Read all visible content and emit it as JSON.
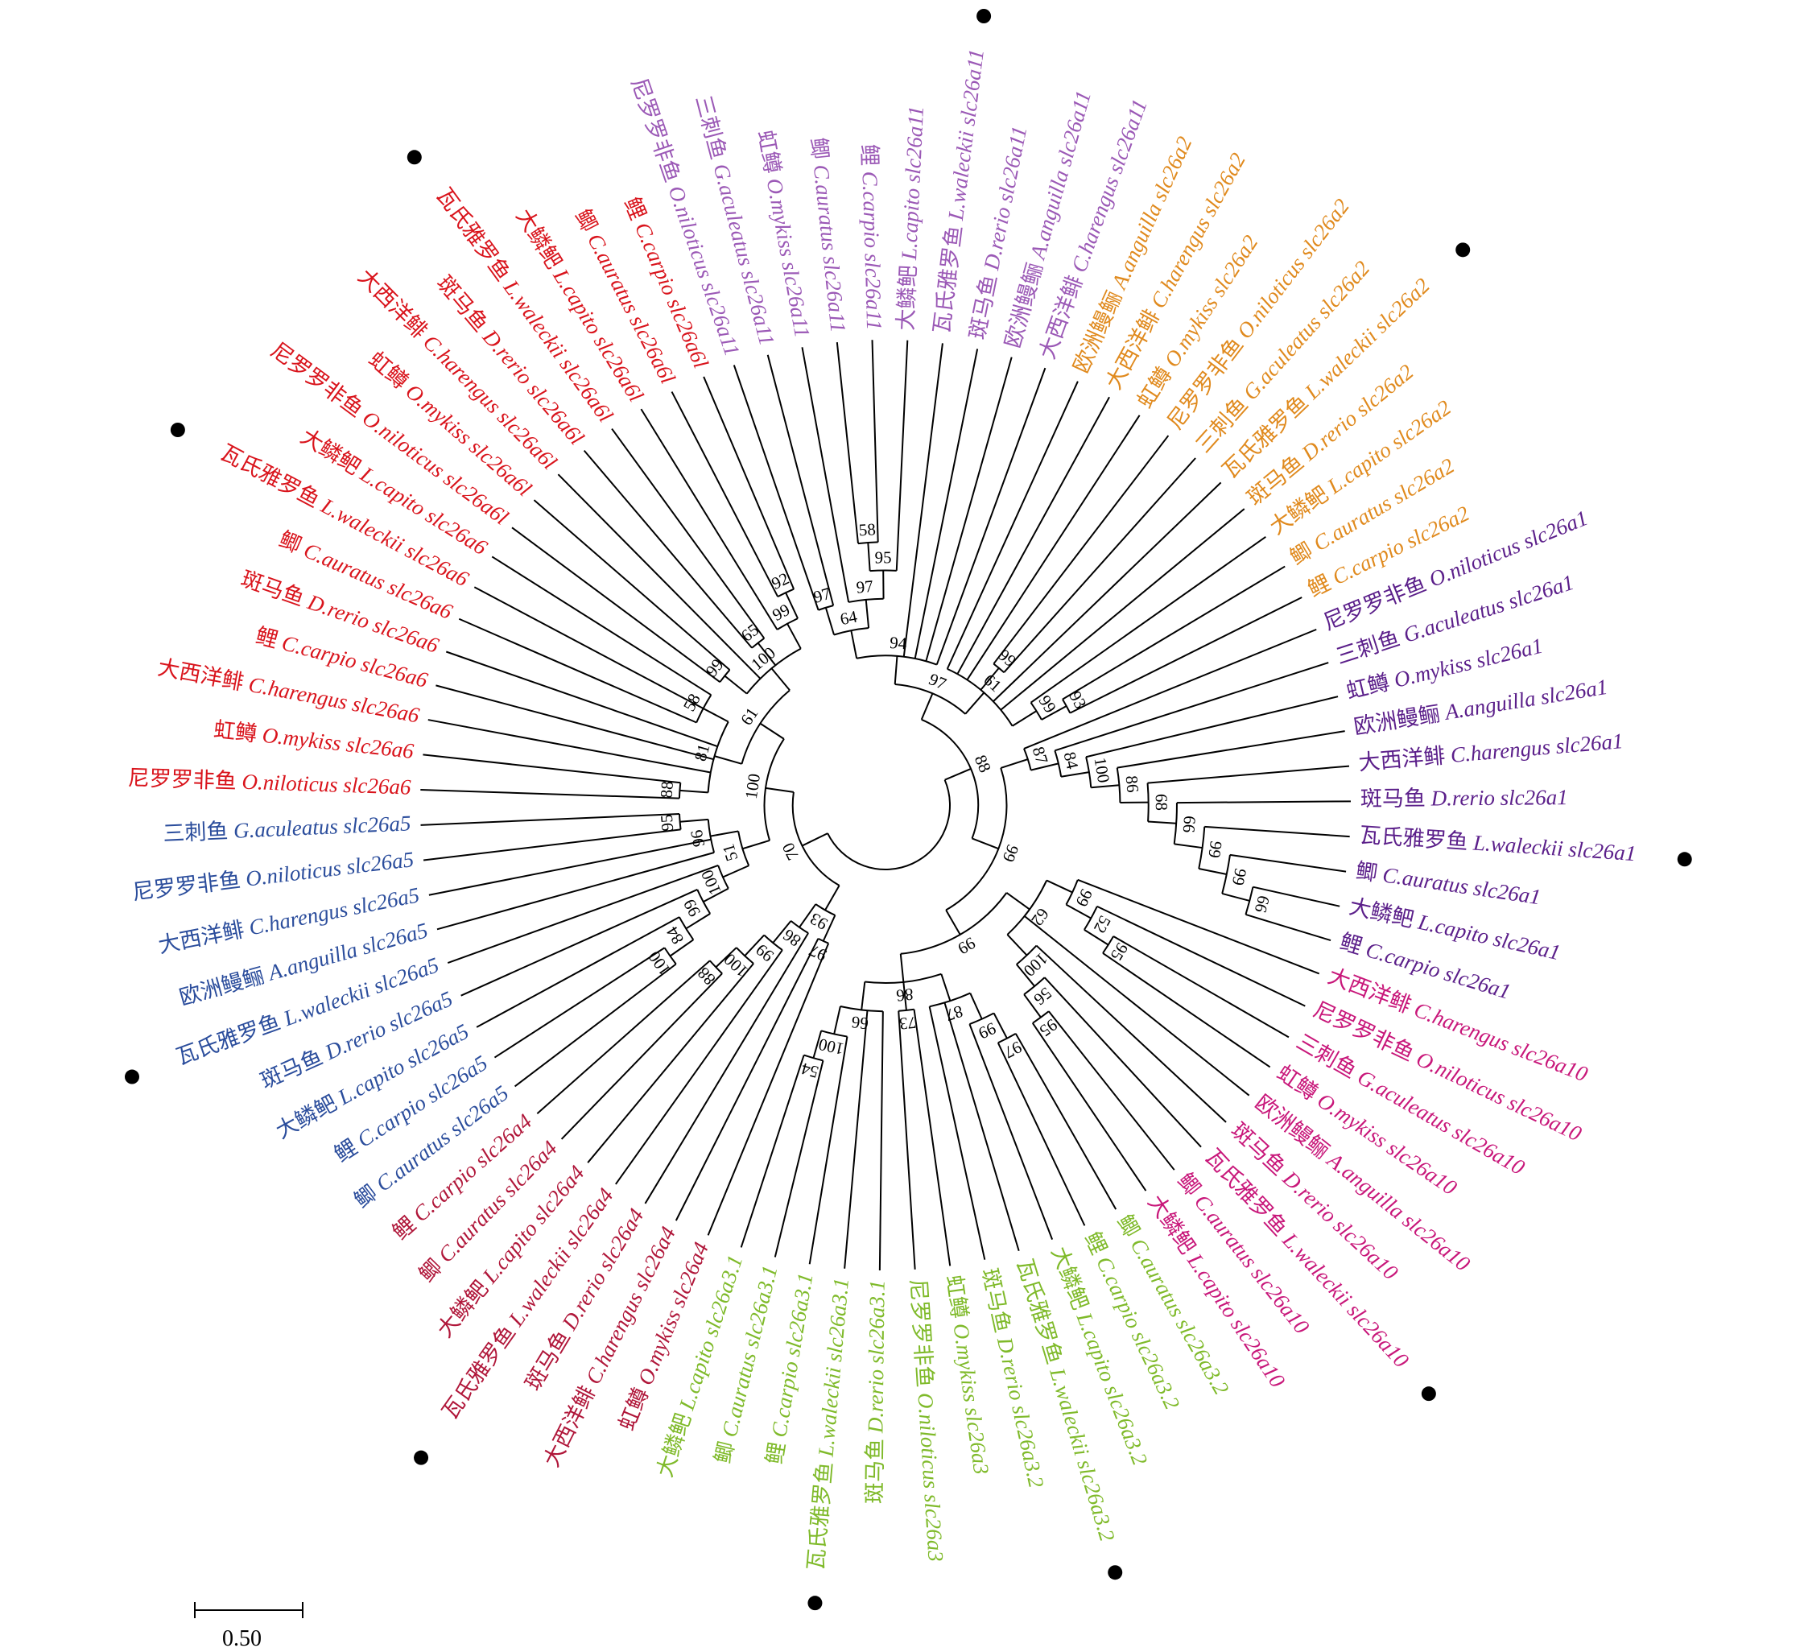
{
  "colors": {
    "slc26a11": "#9b59b6",
    "slc26a2": "#e08a1e",
    "slc26a1": "#5b1f8a",
    "slc26a10": "#c8177a",
    "slc26a3": "#7fba2a",
    "slc26a4": "#b0173a",
    "slc26a5": "#2b4d9c",
    "slc26a6": "#d9141c",
    "branch": "#000000"
  },
  "leaves": [
    {
      "zh": "尼罗罗非鱼",
      "sp": "O.niloticus",
      "gene": "slc26a11",
      "group": "slc26a11",
      "marked": false
    },
    {
      "zh": "三刺鱼",
      "sp": "G.aculeatus",
      "gene": "slc26a11",
      "group": "slc26a11",
      "marked": false
    },
    {
      "zh": "虹鳟",
      "sp": "O.mykiss",
      "gene": "slc26a11",
      "group": "slc26a11",
      "marked": false
    },
    {
      "zh": "鲫",
      "sp": "C.auratus",
      "gene": "slc26a11",
      "group": "slc26a11",
      "marked": false
    },
    {
      "zh": "鲤",
      "sp": "C.carpio",
      "gene": "slc26a11",
      "group": "slc26a11",
      "marked": false
    },
    {
      "zh": "大鳞鲃",
      "sp": "L.capito",
      "gene": "slc26a11",
      "group": "slc26a11",
      "marked": false
    },
    {
      "zh": "瓦氏雅罗鱼",
      "sp": "L.waleckii",
      "gene": "slc26a11",
      "group": "slc26a11",
      "marked": true
    },
    {
      "zh": "斑马鱼",
      "sp": "D.rerio",
      "gene": "slc26a11",
      "group": "slc26a11",
      "marked": false
    },
    {
      "zh": "欧洲鳗鲡",
      "sp": "A.anguilla",
      "gene": "slc26a11",
      "group": "slc26a11",
      "marked": false
    },
    {
      "zh": "大西洋鲱",
      "sp": "C.harengus",
      "gene": "slc26a11",
      "group": "slc26a11",
      "marked": false
    },
    {
      "zh": "欧洲鳗鲡",
      "sp": "A.anguilla",
      "gene": "slc26a2",
      "group": "slc26a2",
      "marked": false
    },
    {
      "zh": "大西洋鲱",
      "sp": "C.harengus",
      "gene": "slc26a2",
      "group": "slc26a2",
      "marked": false
    },
    {
      "zh": "虹鳟",
      "sp": "O.mykiss",
      "gene": "slc26a2",
      "group": "slc26a2",
      "marked": false
    },
    {
      "zh": "尼罗罗非鱼",
      "sp": "O.niloticus",
      "gene": "slc26a2",
      "group": "slc26a2",
      "marked": false
    },
    {
      "zh": "三刺鱼",
      "sp": "G.aculeatus",
      "gene": "slc26a2",
      "group": "slc26a2",
      "marked": false
    },
    {
      "zh": "瓦氏雅罗鱼",
      "sp": "L.waleckii",
      "gene": "slc26a2",
      "group": "slc26a2",
      "marked": true
    },
    {
      "zh": "斑马鱼",
      "sp": "D.rerio",
      "gene": "slc26a2",
      "group": "slc26a2",
      "marked": false
    },
    {
      "zh": "大鳞鲃",
      "sp": "L.capito",
      "gene": "slc26a2",
      "group": "slc26a2",
      "marked": false
    },
    {
      "zh": "鲫",
      "sp": "C.auratus",
      "gene": "slc26a2",
      "group": "slc26a2",
      "marked": false
    },
    {
      "zh": "鲤",
      "sp": "C.carpio",
      "gene": "slc26a2",
      "group": "slc26a2",
      "marked": false
    },
    {
      "zh": "尼罗罗非鱼",
      "sp": "O.niloticus",
      "gene": "slc26a1",
      "group": "slc26a1",
      "marked": false
    },
    {
      "zh": "三刺鱼",
      "sp": "G.aculeatus",
      "gene": "slc26a1",
      "group": "slc26a1",
      "marked": false
    },
    {
      "zh": "虹鳟",
      "sp": "O.mykiss",
      "gene": "slc26a1",
      "group": "slc26a1",
      "marked": false
    },
    {
      "zh": "欧洲鳗鲡",
      "sp": "A.anguilla",
      "gene": "slc26a1",
      "group": "slc26a1",
      "marked": false
    },
    {
      "zh": "大西洋鲱",
      "sp": "C.harengus",
      "gene": "slc26a1",
      "group": "slc26a1",
      "marked": false
    },
    {
      "zh": "斑马鱼",
      "sp": "D.rerio",
      "gene": "slc26a1",
      "group": "slc26a1",
      "marked": false
    },
    {
      "zh": "瓦氏雅罗鱼",
      "sp": "L.waleckii",
      "gene": "slc26a1",
      "group": "slc26a1",
      "marked": true
    },
    {
      "zh": "鲫",
      "sp": "C.auratus",
      "gene": "slc26a1",
      "group": "slc26a1",
      "marked": false
    },
    {
      "zh": "大鳞鲃",
      "sp": "L.capito",
      "gene": "slc26a1",
      "group": "slc26a1",
      "marked": false
    },
    {
      "zh": "鲤",
      "sp": "C.carpio",
      "gene": "slc26a1",
      "group": "slc26a1",
      "marked": false
    },
    {
      "zh": "大西洋鲱",
      "sp": "C.harengus",
      "gene": "slc26a10",
      "group": "slc26a10",
      "marked": false
    },
    {
      "zh": "尼罗罗非鱼",
      "sp": "O.niloticus",
      "gene": "slc26a10",
      "group": "slc26a10",
      "marked": false
    },
    {
      "zh": "三刺鱼",
      "sp": "G.aculeatus",
      "gene": "slc26a10",
      "group": "slc26a10",
      "marked": false
    },
    {
      "zh": "虹鳟",
      "sp": "O.mykiss",
      "gene": "slc26a10",
      "group": "slc26a10",
      "marked": false
    },
    {
      "zh": "欧洲鳗鲡",
      "sp": "A.anguilla",
      "gene": "slc26a10",
      "group": "slc26a10",
      "marked": false
    },
    {
      "zh": "斑马鱼",
      "sp": "D.rerio",
      "gene": "slc26a10",
      "group": "slc26a10",
      "marked": false
    },
    {
      "zh": "瓦氏雅罗鱼",
      "sp": "L.waleckii",
      "gene": "slc26a10",
      "group": "slc26a10",
      "marked": true
    },
    {
      "zh": "鲫",
      "sp": "C.auratus",
      "gene": "slc26a10",
      "group": "slc26a10",
      "marked": false
    },
    {
      "zh": "大鳞鲃",
      "sp": "L.capito",
      "gene": "slc26a10",
      "group": "slc26a10",
      "marked": false
    },
    {
      "zh": "鲫",
      "sp": "C.auratus",
      "gene": "slc26a3.2",
      "group": "slc26a3",
      "marked": false
    },
    {
      "zh": "鲤",
      "sp": "C.carpio",
      "gene": "slc26a3.2",
      "group": "slc26a3",
      "marked": false
    },
    {
      "zh": "大鳞鲃",
      "sp": "L.capito",
      "gene": "slc26a3.2",
      "group": "slc26a3",
      "marked": false
    },
    {
      "zh": "瓦氏雅罗鱼",
      "sp": "L.waleckii",
      "gene": "slc26a3.2",
      "group": "slc26a3",
      "marked": true
    },
    {
      "zh": "斑马鱼",
      "sp": "D.rerio",
      "gene": "slc26a3.2",
      "group": "slc26a3",
      "marked": false
    },
    {
      "zh": "虹鳟",
      "sp": "O.mykiss",
      "gene": "slc26a3",
      "group": "slc26a3",
      "marked": false
    },
    {
      "zh": "尼罗罗非鱼",
      "sp": "O.niloticus",
      "gene": "slc26a3",
      "group": "slc26a3",
      "marked": false
    },
    {
      "zh": "斑马鱼",
      "sp": "D.rerio",
      "gene": "slc26a3.1",
      "group": "slc26a3",
      "marked": false
    },
    {
      "zh": "瓦氏雅罗鱼",
      "sp": "L.waleckii",
      "gene": "slc26a3.1",
      "group": "slc26a3",
      "marked": true
    },
    {
      "zh": "鲤",
      "sp": "C.carpio",
      "gene": "slc26a3.1",
      "group": "slc26a3",
      "marked": false
    },
    {
      "zh": "鲫",
      "sp": "C.auratus",
      "gene": "slc26a3.1",
      "group": "slc26a3",
      "marked": false
    },
    {
      "zh": "大鳞鲃",
      "sp": "L.capito",
      "gene": "slc26a3.1",
      "group": "slc26a3",
      "marked": false
    },
    {
      "zh": "虹鳟",
      "sp": "O.mykiss",
      "gene": "slc26a4",
      "group": "slc26a4",
      "marked": false
    },
    {
      "zh": "大西洋鲱",
      "sp": "C.harengus",
      "gene": "slc26a4",
      "group": "slc26a4",
      "marked": false
    },
    {
      "zh": "斑马鱼",
      "sp": "D.rerio",
      "gene": "slc26a4",
      "group": "slc26a4",
      "marked": false
    },
    {
      "zh": "瓦氏雅罗鱼",
      "sp": "L.waleckii",
      "gene": "slc26a4",
      "group": "slc26a4",
      "marked": true
    },
    {
      "zh": "大鳞鲃",
      "sp": "L.capito",
      "gene": "slc26a4",
      "group": "slc26a4",
      "marked": false
    },
    {
      "zh": "鲫",
      "sp": "C.auratus",
      "gene": "slc26a4",
      "group": "slc26a4",
      "marked": false
    },
    {
      "zh": "鲤",
      "sp": "C.carpio",
      "gene": "slc26a4",
      "group": "slc26a4",
      "marked": false
    },
    {
      "zh": "鲫",
      "sp": "C.auratus",
      "gene": "slc26a5",
      "group": "slc26a5",
      "marked": false
    },
    {
      "zh": "鲤",
      "sp": "C.carpio",
      "gene": "slc26a5",
      "group": "slc26a5",
      "marked": false
    },
    {
      "zh": "大鳞鲃",
      "sp": "L.capito",
      "gene": "slc26a5",
      "group": "slc26a5",
      "marked": false
    },
    {
      "zh": "斑马鱼",
      "sp": "D.rerio",
      "gene": "slc26a5",
      "group": "slc26a5",
      "marked": false
    },
    {
      "zh": "瓦氏雅罗鱼",
      "sp": "L.waleckii",
      "gene": "slc26a5",
      "group": "slc26a5",
      "marked": true
    },
    {
      "zh": "欧洲鳗鲡",
      "sp": "A.anguilla",
      "gene": "slc26a5",
      "group": "slc26a5",
      "marked": false
    },
    {
      "zh": "大西洋鲱",
      "sp": "C.harengus",
      "gene": "slc26a5",
      "group": "slc26a5",
      "marked": false
    },
    {
      "zh": "尼罗罗非鱼",
      "sp": "O.niloticus",
      "gene": "slc26a5",
      "group": "slc26a5",
      "marked": false
    },
    {
      "zh": "三刺鱼",
      "sp": "G.aculeatus",
      "gene": "slc26a5",
      "group": "slc26a5",
      "marked": false
    },
    {
      "zh": "尼罗罗非鱼",
      "sp": "O.niloticus",
      "gene": "slc26a6",
      "group": "slc26a6",
      "marked": false
    },
    {
      "zh": "虹鳟",
      "sp": "O.mykiss",
      "gene": "slc26a6",
      "group": "slc26a6",
      "marked": false
    },
    {
      "zh": "大西洋鲱",
      "sp": "C.harengus",
      "gene": "slc26a6",
      "group": "slc26a6",
      "marked": false
    },
    {
      "zh": "鲤",
      "sp": "C.carpio",
      "gene": "slc26a6",
      "group": "slc26a6",
      "marked": false
    },
    {
      "zh": "斑马鱼",
      "sp": "D.rerio",
      "gene": "slc26a6",
      "group": "slc26a6",
      "marked": false
    },
    {
      "zh": "鲫",
      "sp": "C.auratus",
      "gene": "slc26a6",
      "group": "slc26a6",
      "marked": false
    },
    {
      "zh": "瓦氏雅罗鱼",
      "sp": "L.waleckii",
      "gene": "slc26a6",
      "group": "slc26a6",
      "marked": true
    },
    {
      "zh": "大鳞鲃",
      "sp": "L.capito",
      "gene": "slc26a6",
      "group": "slc26a6",
      "marked": false
    },
    {
      "zh": "尼罗罗非鱼",
      "sp": "O.niloticus",
      "gene": "slc26a6l",
      "group": "slc26a6",
      "marked": false
    },
    {
      "zh": "虹鳟",
      "sp": "O.mykiss",
      "gene": "slc26a6l",
      "group": "slc26a6",
      "marked": false
    },
    {
      "zh": "大西洋鲱",
      "sp": "C.harengus",
      "gene": "slc26a6l",
      "group": "slc26a6",
      "marked": false
    },
    {
      "zh": "斑马鱼",
      "sp": "D.rerio",
      "gene": "slc26a6l",
      "group": "slc26a6",
      "marked": false
    },
    {
      "zh": "瓦氏雅罗鱼",
      "sp": "L.waleckii",
      "gene": "slc26a6l",
      "group": "slc26a6",
      "marked": true
    },
    {
      "zh": "大鳞鲃",
      "sp": "L.capito",
      "gene": "slc26a6l",
      "group": "slc26a6",
      "marked": false
    },
    {
      "zh": "鲫",
      "sp": "C.auratus",
      "gene": "slc26a6l",
      "group": "slc26a6",
      "marked": false
    },
    {
      "zh": "鲤",
      "sp": "C.carpio",
      "gene": "slc26a6l",
      "group": "slc26a6",
      "marked": false
    }
  ],
  "bootstrap_values": [
    "97",
    "58",
    "95",
    "97",
    "64",
    "94",
    "99",
    "93",
    "99",
    "61",
    "97",
    "66",
    "99",
    "99",
    "66",
    "68",
    "86",
    "100",
    "84",
    "87",
    "95",
    "52",
    "99",
    "95",
    "56",
    "100",
    "62",
    "97",
    "99",
    "87",
    "73",
    "54",
    "100",
    "66",
    "86",
    "99",
    "99",
    "88",
    "97",
    "88",
    "100",
    "99",
    "86",
    "93",
    "95",
    "96",
    "100",
    "84",
    "99",
    "100",
    "51",
    "88",
    "58",
    "81",
    "99",
    "65",
    "92",
    "99",
    "100",
    "61",
    "100",
    "70",
    "64",
    "99",
    "99",
    "100",
    "94",
    "61",
    "73",
    "91",
    "96"
  ],
  "scale_bar": {
    "label": "0.50"
  }
}
